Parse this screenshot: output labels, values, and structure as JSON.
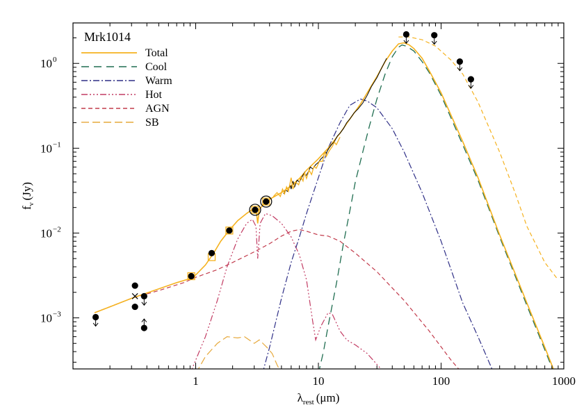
{
  "chart_data": {
    "type": "line",
    "title": "Mrk1014",
    "xlabel": "λ",
    "xlabel_sub": "rest",
    "xlabel_unit": "(μm)",
    "ylabel": "f",
    "ylabel_sub": "ν",
    "ylabel_unit": "(Jy)",
    "x_scale": "log",
    "y_scale": "log",
    "xlim": [
      0.1,
      1000
    ],
    "ylim": [
      0.00025,
      3
    ],
    "x_ticks": [
      {
        "value": 1,
        "label": "1"
      },
      {
        "value": 10,
        "label": "10"
      },
      {
        "value": 100,
        "label": "100"
      },
      {
        "value": 1000,
        "label": "1000"
      }
    ],
    "y_ticks": [
      {
        "value": 0.001,
        "base": "10",
        "exp": "−3"
      },
      {
        "value": 0.01,
        "base": "10",
        "exp": "−2"
      },
      {
        "value": 0.1,
        "base": "10",
        "exp": "−1"
      },
      {
        "value": 1,
        "base": "10",
        "exp": "0"
      }
    ],
    "grid": false,
    "legend_position": "top-left",
    "series": [
      {
        "name": "Total",
        "color": "#f5b21f",
        "dash": "solid",
        "width": 1.6,
        "points": [
          [
            0.15,
            0.00115
          ],
          [
            0.2,
            0.00135
          ],
          [
            0.3,
            0.0017
          ],
          [
            0.5,
            0.0022
          ],
          [
            0.7,
            0.0026
          ],
          [
            0.9,
            0.0029
          ],
          [
            1.0,
            0.0032
          ],
          [
            1.2,
            0.0042
          ],
          [
            1.4,
            0.0058
          ],
          [
            1.6,
            0.008
          ],
          [
            1.9,
            0.011
          ],
          [
            2.2,
            0.014
          ],
          [
            2.6,
            0.017
          ],
          [
            2.9,
            0.019
          ],
          [
            3.1,
            0.0195
          ],
          [
            3.2,
            0.013
          ],
          [
            3.3,
            0.019
          ],
          [
            3.6,
            0.022
          ],
          [
            4,
            0.025
          ],
          [
            5,
            0.03
          ],
          [
            6,
            0.036
          ],
          [
            7,
            0.044
          ],
          [
            8,
            0.055
          ],
          [
            10,
            0.075
          ],
          [
            12,
            0.1
          ],
          [
            15,
            0.15
          ],
          [
            18,
            0.22
          ],
          [
            22,
            0.33
          ],
          [
            25,
            0.45
          ],
          [
            30,
            0.7
          ],
          [
            35,
            1.05
          ],
          [
            40,
            1.4
          ],
          [
            45,
            1.7
          ],
          [
            50,
            1.75
          ],
          [
            55,
            1.65
          ],
          [
            60,
            1.5
          ],
          [
            70,
            1.15
          ],
          [
            80,
            0.82
          ],
          [
            100,
            0.45
          ],
          [
            150,
            0.12
          ],
          [
            200,
            0.045
          ],
          [
            300,
            0.0095
          ],
          [
            500,
            0.0015
          ],
          [
            700,
            0.00045
          ],
          [
            900,
            0.00018
          ]
        ]
      },
      {
        "name": "Cool",
        "color": "#1f6d50",
        "dash": "11 7",
        "width": 1.3,
        "points": [
          [
            10,
            0.00022
          ],
          [
            11,
            0.0004
          ],
          [
            12,
            0.0008
          ],
          [
            14,
            0.0025
          ],
          [
            16,
            0.0075
          ],
          [
            18,
            0.018
          ],
          [
            20,
            0.04
          ],
          [
            23,
            0.09
          ],
          [
            26,
            0.18
          ],
          [
            30,
            0.38
          ],
          [
            35,
            0.75
          ],
          [
            40,
            1.2
          ],
          [
            45,
            1.55
          ],
          [
            48,
            1.65
          ],
          [
            52,
            1.6
          ],
          [
            60,
            1.4
          ],
          [
            70,
            1.05
          ],
          [
            80,
            0.78
          ],
          [
            100,
            0.42
          ],
          [
            150,
            0.11
          ],
          [
            200,
            0.042
          ],
          [
            300,
            0.009
          ],
          [
            500,
            0.0014
          ],
          [
            700,
            0.00042
          ],
          [
            900,
            0.00017
          ]
        ]
      },
      {
        "name": "Warm",
        "color": "#2e2e86",
        "dash": "9 3 2 3",
        "width": 1.2,
        "points": [
          [
            3.5,
            0.00022
          ],
          [
            4,
            0.00045
          ],
          [
            5,
            0.0017
          ],
          [
            6,
            0.0045
          ],
          [
            7,
            0.009
          ],
          [
            8,
            0.017
          ],
          [
            10,
            0.045
          ],
          [
            12,
            0.1
          ],
          [
            15,
            0.2
          ],
          [
            18,
            0.32
          ],
          [
            22,
            0.38
          ],
          [
            25,
            0.36
          ],
          [
            30,
            0.3
          ],
          [
            40,
            0.17
          ],
          [
            50,
            0.09
          ],
          [
            70,
            0.03
          ],
          [
            100,
            0.008
          ],
          [
            150,
            0.0015
          ],
          [
            200,
            0.0006
          ],
          [
            260,
            0.00025
          ]
        ]
      },
      {
        "name": "Hot",
        "color": "#c23b63",
        "dash": "9 3 2 3 2 3 2 3",
        "width": 1.2,
        "points": [
          [
            0.9,
            0.00022
          ],
          [
            1.2,
            0.0006
          ],
          [
            1.5,
            0.0016
          ],
          [
            1.8,
            0.004
          ],
          [
            2.2,
            0.0085
          ],
          [
            2.6,
            0.013
          ],
          [
            2.9,
            0.0145
          ],
          [
            3.1,
            0.012
          ],
          [
            3.2,
            0.005
          ],
          [
            3.35,
            0.013
          ],
          [
            3.7,
            0.017
          ],
          [
            4.2,
            0.016
          ],
          [
            5,
            0.013
          ],
          [
            6,
            0.009
          ],
          [
            7,
            0.0055
          ],
          [
            8,
            0.0028
          ],
          [
            9,
            0.0009
          ],
          [
            9.5,
            0.00055
          ],
          [
            10.5,
            0.0008
          ],
          [
            12,
            0.00115
          ],
          [
            13,
            0.0011
          ],
          [
            15,
            0.0007
          ],
          [
            17,
            0.00055
          ],
          [
            20,
            0.00048
          ],
          [
            25,
            0.00038
          ],
          [
            35,
            0.00022
          ]
        ]
      },
      {
        "name": "AGN",
        "color": "#c23b4c",
        "dash": "6 4",
        "width": 1.2,
        "points": [
          [
            0.15,
            0.00115
          ],
          [
            0.3,
            0.0017
          ],
          [
            0.5,
            0.0021
          ],
          [
            0.8,
            0.0026
          ],
          [
            1.0,
            0.003
          ],
          [
            1.5,
            0.0037
          ],
          [
            2,
            0.0045
          ],
          [
            3,
            0.006
          ],
          [
            4,
            0.0075
          ],
          [
            5,
            0.0092
          ],
          [
            6,
            0.0105
          ],
          [
            7,
            0.011
          ],
          [
            8,
            0.0105
          ],
          [
            10,
            0.0095
          ],
          [
            12,
            0.0092
          ],
          [
            15,
            0.008
          ],
          [
            20,
            0.0058
          ],
          [
            30,
            0.0035
          ],
          [
            50,
            0.0016
          ],
          [
            80,
            0.0007
          ],
          [
            120,
            0.00032
          ],
          [
            150,
            0.00022
          ]
        ]
      },
      {
        "name": "SB",
        "color": "#e6a83a",
        "dash": "11 5",
        "width": 1.2,
        "points": [
          [
            1,
            0.00022
          ],
          [
            1.2,
            0.00035
          ],
          [
            1.5,
            0.0005
          ],
          [
            1.8,
            0.0006
          ],
          [
            2.2,
            0.00058
          ],
          [
            2.5,
            0.0006
          ],
          [
            3,
            0.0005
          ],
          [
            3.3,
            0.00055
          ],
          [
            3.8,
            0.00045
          ],
          [
            4.2,
            0.00038
          ],
          [
            4.6,
            0.00028
          ],
          [
            5,
            0.00022
          ]
        ]
      }
    ],
    "extrapolation": {
      "color": "#f5b21f",
      "dash": "6 4",
      "width": 1.2,
      "points": [
        [
          45,
          2.05
        ],
        [
          55,
          2.05
        ],
        [
          70,
          1.9
        ],
        [
          90,
          1.6
        ],
        [
          120,
          1.1
        ],
        [
          150,
          0.75
        ],
        [
          200,
          0.35
        ],
        [
          300,
          0.09
        ],
        [
          400,
          0.03
        ],
        [
          500,
          0.012
        ],
        [
          700,
          0.0045
        ],
        [
          900,
          0.0028
        ]
      ]
    },
    "irs_spectrum": {
      "color": "#000000",
      "points": [
        [
          5.2,
          0.029
        ],
        [
          5.4,
          0.032
        ],
        [
          5.6,
          0.031
        ],
        [
          5.9,
          0.036
        ],
        [
          6.0,
          0.033
        ],
        [
          6.2,
          0.041
        ],
        [
          6.4,
          0.035
        ],
        [
          6.7,
          0.042
        ],
        [
          7.0,
          0.04
        ],
        [
          7.3,
          0.045
        ],
        [
          7.7,
          0.052
        ],
        [
          7.9,
          0.047
        ],
        [
          8.3,
          0.053
        ],
        [
          8.6,
          0.06
        ],
        [
          9.0,
          0.057
        ],
        [
          9.5,
          0.064
        ],
        [
          10,
          0.068
        ],
        [
          10.5,
          0.075
        ],
        [
          11,
          0.08
        ],
        [
          11.3,
          0.091
        ],
        [
          11.6,
          0.088
        ],
        [
          12.2,
          0.1
        ],
        [
          12.8,
          0.11
        ],
        [
          13.5,
          0.12
        ],
        [
          14.3,
          0.14
        ],
        [
          15,
          0.15
        ],
        [
          16,
          0.17
        ],
        [
          17,
          0.2
        ],
        [
          18,
          0.22
        ],
        [
          19.5,
          0.26
        ],
        [
          21,
          0.29
        ],
        [
          23,
          0.34
        ],
        [
          25,
          0.42
        ],
        [
          27,
          0.53
        ],
        [
          30,
          0.68
        ],
        [
          33,
          0.9
        ],
        [
          36,
          1.15
        ]
      ]
    },
    "irs_noise_spectrum": {
      "color": "#f5b21f",
      "points": [
        [
          4.3,
          0.027
        ],
        [
          4.6,
          0.03
        ],
        [
          4.9,
          0.027
        ],
        [
          5.1,
          0.033
        ],
        [
          5.3,
          0.029
        ],
        [
          5.5,
          0.035
        ],
        [
          5.7,
          0.031
        ],
        [
          6.0,
          0.045
        ],
        [
          6.2,
          0.033
        ],
        [
          6.5,
          0.04
        ],
        [
          6.9,
          0.037
        ],
        [
          7.2,
          0.046
        ],
        [
          7.5,
          0.041
        ],
        [
          7.7,
          0.052
        ],
        [
          8.0,
          0.044
        ],
        [
          8.4,
          0.055
        ],
        [
          8.8,
          0.049
        ],
        [
          9.2,
          0.061
        ],
        [
          9.6,
          0.058
        ],
        [
          10.2,
          0.07
        ],
        [
          10.8,
          0.07
        ],
        [
          11.3,
          0.092
        ],
        [
          11.6,
          0.08
        ],
        [
          12.1,
          0.09
        ],
        [
          12.5,
          0.097
        ],
        [
          13,
          0.105
        ],
        [
          13.5,
          0.118
        ],
        [
          14,
          0.11
        ],
        [
          15,
          0.135
        ]
      ]
    },
    "photometry": [
      {
        "x": 0.153,
        "y": 0.00102,
        "marker": "filled",
        "limit": "upper"
      },
      {
        "x": 0.32,
        "y": 0.0024,
        "marker": "filled"
      },
      {
        "x": 0.32,
        "y": 0.00135,
        "marker": "filled"
      },
      {
        "x": 0.32,
        "y": 0.0018,
        "marker": "cross"
      },
      {
        "x": 0.38,
        "y": 0.0018,
        "marker": "filled",
        "limit": "upper"
      },
      {
        "x": 0.38,
        "y": 0.00076,
        "marker": "filled",
        "limit": "lower"
      },
      {
        "x": 0.92,
        "y": 0.0031,
        "marker": "filled"
      },
      {
        "x": 1.35,
        "y": 0.0058,
        "marker": "filled"
      },
      {
        "x": 1.88,
        "y": 0.0107,
        "marker": "filled"
      },
      {
        "x": 3.05,
        "y": 0.0188,
        "marker": "filled"
      },
      {
        "x": 3.75,
        "y": 0.0235,
        "marker": "filled"
      },
      {
        "x": 52,
        "y": 2.2,
        "marker": "filled",
        "limit": "upper"
      },
      {
        "x": 88,
        "y": 2.15,
        "marker": "filled",
        "limit": "upper"
      },
      {
        "x": 142,
        "y": 1.05,
        "marker": "filled",
        "limit": "upper"
      },
      {
        "x": 175,
        "y": 0.65,
        "marker": "filled",
        "limit": "upper"
      }
    ],
    "model_squares": [
      [
        0.92,
        0.0031
      ],
      [
        1.35,
        0.0052
      ],
      [
        1.88,
        0.0107
      ],
      [
        3.05,
        0.0188
      ],
      [
        3.75,
        0.0235
      ]
    ],
    "model_circles": [
      [
        3.05,
        0.0188
      ],
      [
        3.75,
        0.0235
      ]
    ]
  }
}
